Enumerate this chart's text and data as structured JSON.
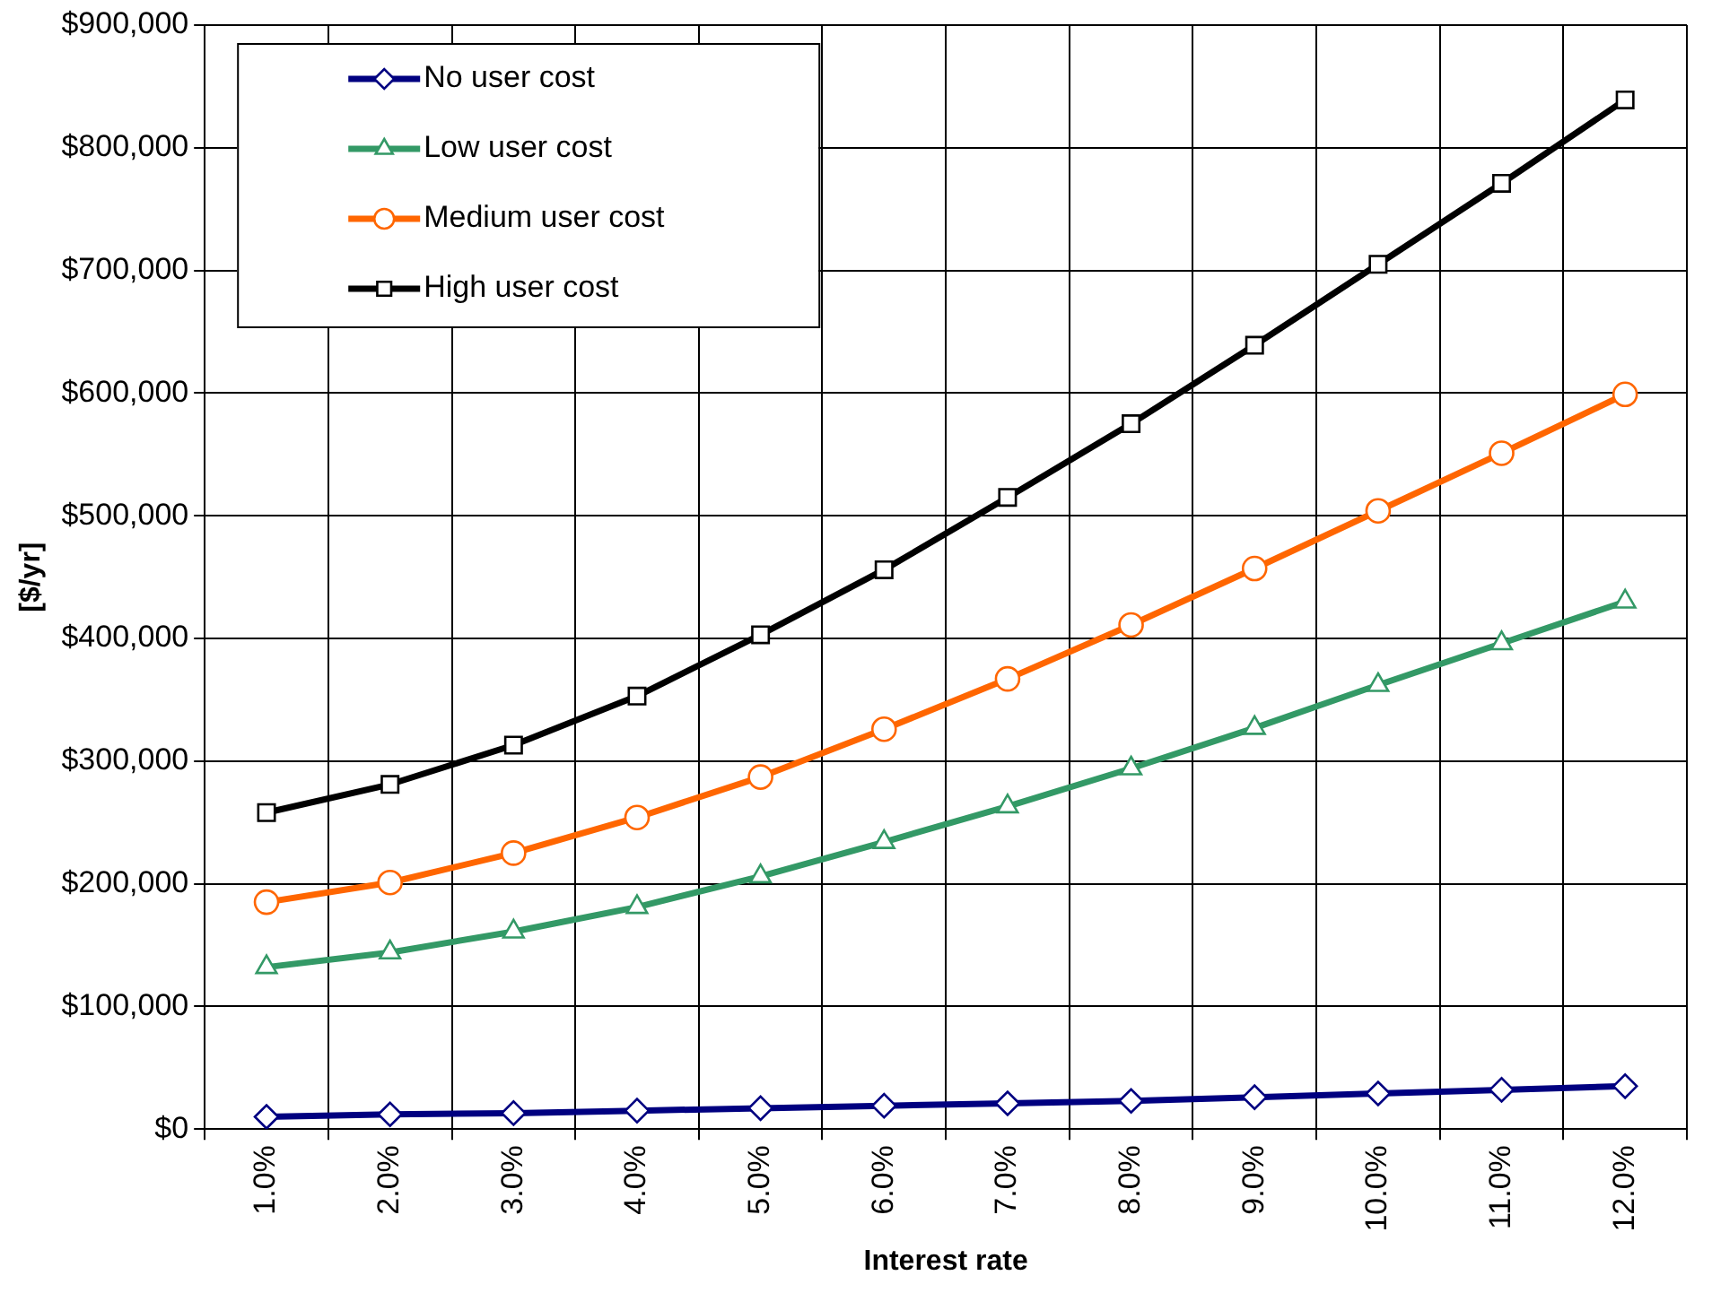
{
  "chart_data": {
    "type": "line",
    "xlabel": "Interest rate",
    "ylabel": "[$/yr]",
    "categories": [
      "1.0%",
      "2.0%",
      "3.0%",
      "4.0%",
      "5.0%",
      "6.0%",
      "7.0%",
      "8.0%",
      "9.0%",
      "10.0%",
      "11.0%",
      "12.0%"
    ],
    "series": [
      {
        "name": "No user cost",
        "color": "#000080",
        "marker": "diamond",
        "values": [
          10000,
          12000,
          13000,
          15000,
          17000,
          19000,
          21000,
          23000,
          26000,
          29000,
          32000,
          35000
        ]
      },
      {
        "name": "Low user cost",
        "color": "#339966",
        "marker": "triangle",
        "values": [
          132000,
          144000,
          161000,
          181000,
          206000,
          234000,
          263000,
          294000,
          327000,
          362000,
          396000,
          430000
        ]
      },
      {
        "name": "Medium user cost",
        "color": "#ff6600",
        "marker": "circle",
        "values": [
          185000,
          201000,
          225000,
          254000,
          287000,
          326000,
          367000,
          411000,
          457000,
          504000,
          551000,
          599000
        ]
      },
      {
        "name": "High user cost",
        "color": "#000000",
        "marker": "square",
        "values": [
          258000,
          281000,
          313000,
          353000,
          403000,
          456000,
          515000,
          575000,
          639000,
          705000,
          771000,
          839000
        ]
      }
    ],
    "ylim": [
      0,
      900000
    ],
    "yticks": [
      {
        "value": 0,
        "label": "$0"
      },
      {
        "value": 100000,
        "label": "$100,000"
      },
      {
        "value": 200000,
        "label": "$200,000"
      },
      {
        "value": 300000,
        "label": "$300,000"
      },
      {
        "value": 400000,
        "label": "$400,000"
      },
      {
        "value": 500000,
        "label": "$500,000"
      },
      {
        "value": 600000,
        "label": "$600,000"
      },
      {
        "value": 700000,
        "label": "$700,000"
      },
      {
        "value": 800000,
        "label": "$800,000"
      },
      {
        "value": 900000,
        "label": "$900,000"
      }
    ],
    "grid": true,
    "legend": "top left",
    "line_style": "solid"
  }
}
